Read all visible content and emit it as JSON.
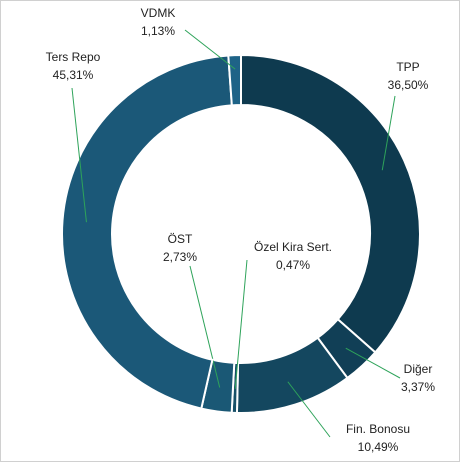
{
  "chart_data": {
    "type": "donut",
    "categories": [
      "TPP",
      "Diğer",
      "Fin. Bonosu",
      "Özel Kira Sert.",
      "ÖST",
      "Ters Repo",
      "VDMK"
    ],
    "values": [
      36.5,
      3.37,
      10.49,
      0.47,
      2.73,
      45.31,
      1.13
    ],
    "value_labels": [
      "36,50%",
      "3,37%",
      "10,49%",
      "0,47%",
      "2,73%",
      "45,31%",
      "1,13%"
    ],
    "colors": [
      "#0e3a4f",
      "#113f56",
      "#14475f",
      "#175068",
      "#1a5875",
      "#1b5878",
      "#1e6387"
    ]
  }
}
